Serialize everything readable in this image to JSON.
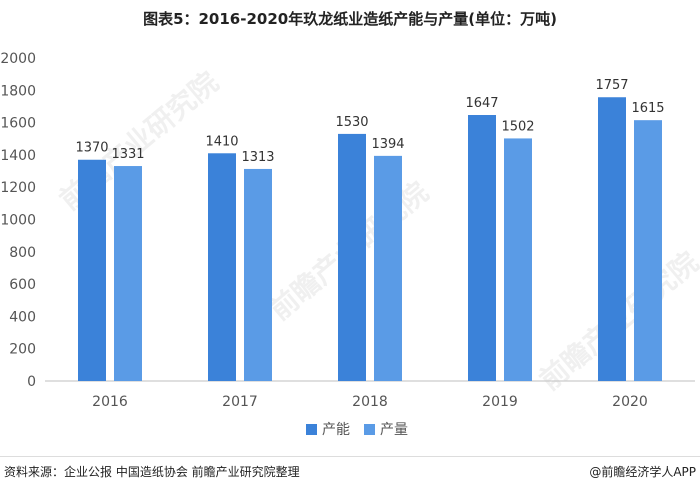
{
  "title": "图表5：2016-2020年玖龙纸业造纸产能与产量(单位：万吨)",
  "source": "资料来源：企业公报 中国造纸协会 前瞻产业研究院整理",
  "brand": "@前瞻经济学人APP",
  "colors": {
    "capacity": "#3b82d9",
    "output": "#5a9be6",
    "axis": "#bfbfbf"
  },
  "chart_data": {
    "type": "bar",
    "title": "图表5：2016-2020年玖龙纸业造纸产能与产量(单位：万吨)",
    "categories": [
      "2016",
      "2017",
      "2018",
      "2019",
      "2020"
    ],
    "series": [
      {
        "name": "产能",
        "values": [
          1370,
          1410,
          1530,
          1647,
          1757
        ]
      },
      {
        "name": "产量",
        "values": [
          1331,
          1313,
          1394,
          1502,
          1615
        ]
      }
    ],
    "ylim": [
      0,
      2000
    ],
    "yticks": [
      0,
      200,
      400,
      600,
      800,
      1000,
      1200,
      1400,
      1600,
      1800,
      2000
    ],
    "grid": false,
    "legend": "bottom-center",
    "xlabel": "",
    "ylabel": ""
  }
}
